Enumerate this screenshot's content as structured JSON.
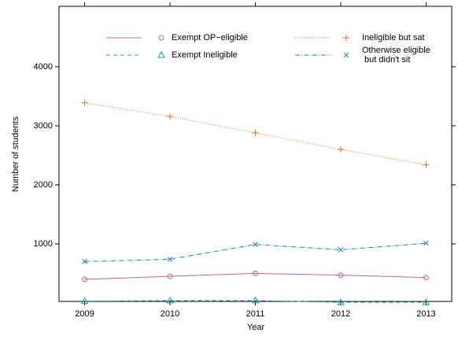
{
  "chart_data": {
    "type": "line",
    "x_label": "Year",
    "y_label": "Number of students",
    "x": [
      2009,
      2010,
      2011,
      2012,
      2013
    ],
    "xlim": [
      2008.7,
      2013.3
    ],
    "xticks": [
      2009,
      2010,
      2011,
      2012,
      2013
    ],
    "ylim": [
      25,
      5025
    ],
    "yticks": [
      1000,
      2000,
      3000,
      4000
    ],
    "series": [
      {
        "name": "Exempt OP−eligible",
        "color": "#c8609c",
        "dash": "none",
        "marker": "circle",
        "values": [
          400,
          450,
          500,
          470,
          430
        ]
      },
      {
        "name": "Exempt Ineligible",
        "color": "#1a9fa0",
        "dash": "5,4",
        "marker": "triangle",
        "values": [
          30,
          40,
          40,
          10,
          10
        ]
      },
      {
        "name": "Ineligible but sat",
        "color": "#e07020",
        "dash": "1,2",
        "marker": "plus",
        "values": [
          3390,
          3160,
          2880,
          2600,
          2340
        ]
      },
      {
        "name": "Otherwise eligible\n but didn't sit",
        "color": "#1f7fc0",
        "dash": "6,2,1,2",
        "marker": "cross",
        "values": [
          700,
          740,
          990,
          900,
          1010
        ]
      }
    ]
  }
}
